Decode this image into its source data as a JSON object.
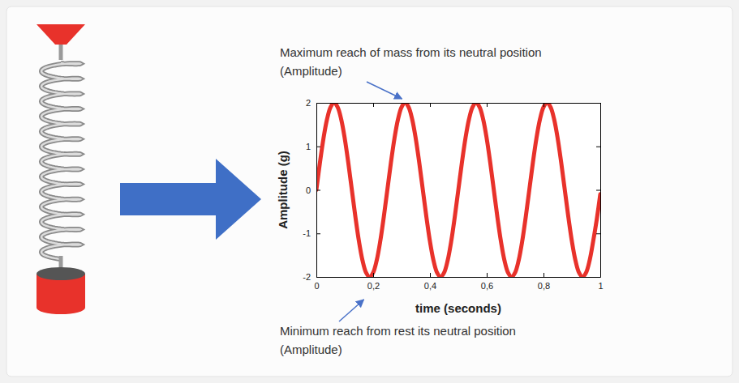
{
  "chart_data": {
    "type": "line",
    "x_label": "time (seconds)",
    "y_label": "Amplitude (g)",
    "color": "#e8322b",
    "grid": false,
    "xlim": [
      0,
      1
    ],
    "xticks": [
      0,
      {
        "value": 0.2,
        "label": "0,2"
      },
      {
        "value": 0.4,
        "label": "0,4"
      },
      {
        "value": 0.6,
        "label": "0,6"
      },
      {
        "value": 0.8,
        "label": "0,8"
      },
      1
    ],
    "ylim": [
      -2,
      2
    ],
    "yticks": [
      -2,
      -1,
      0,
      1,
      2
    ],
    "x": [
      0,
      0.0125,
      0.025,
      0.0375,
      0.05,
      0.0625,
      0.075,
      0.0875,
      0.1,
      0.1125,
      0.125,
      0.1375,
      0.15,
      0.1625,
      0.175,
      0.1875,
      0.2,
      0.2125,
      0.225,
      0.2375,
      0.25,
      0.2625,
      0.275,
      0.2875,
      0.3,
      0.3125,
      0.325,
      0.3375,
      0.35,
      0.3625,
      0.375,
      0.3875,
      0.4,
      0.4125,
      0.425,
      0.4375,
      0.45,
      0.4625,
      0.475,
      0.4875,
      0.5,
      0.5125,
      0.525,
      0.5375,
      0.55,
      0.5625,
      0.575,
      0.5875,
      0.6,
      0.6125,
      0.625,
      0.6375,
      0.65,
      0.6625,
      0.675,
      0.6875,
      0.7,
      0.7125,
      0.725,
      0.7375,
      0.75,
      0.7625,
      0.775,
      0.7875,
      0.8,
      0.8125,
      0.825,
      0.8375,
      0.85,
      0.8625,
      0.875,
      0.8875,
      0.9,
      0.9125,
      0.925,
      0.9375,
      0.95,
      0.9625,
      0.975,
      0.9875,
      1
    ],
    "values": [
      0,
      0.62,
      1.18,
      1.62,
      1.9,
      2,
      1.9,
      1.62,
      1.18,
      0.62,
      0,
      -0.62,
      -1.18,
      -1.62,
      -1.9,
      -2,
      -1.9,
      -1.62,
      -1.18,
      -0.62,
      0,
      0.62,
      1.18,
      1.62,
      1.9,
      2,
      1.9,
      1.62,
      1.18,
      0.62,
      0,
      -0.62,
      -1.18,
      -1.62,
      -1.9,
      -2,
      -1.9,
      -1.62,
      -1.18,
      -0.62,
      0,
      0.62,
      1.18,
      1.62,
      1.9,
      2,
      1.9,
      1.62,
      1.18,
      0.62,
      0,
      -0.62,
      -1.18,
      -1.62,
      -1.9,
      -2,
      -1.9,
      -1.62,
      -1.18,
      -0.62,
      0,
      0.62,
      1.18,
      1.62,
      1.9,
      2,
      1.9,
      1.62,
      1.18,
      0.62,
      0,
      -0.62,
      -1.18,
      -1.62,
      -1.9,
      -2,
      -1.9,
      -1.62,
      -1.18,
      -0.68,
      -0.1
    ],
    "annotations": [
      {
        "lines": [
          "Maximum reach of mass from its neutral position",
          "(Amplitude)"
        ],
        "x": 0.31,
        "y": 2
      },
      {
        "lines": [
          "Minimum reach from rest its neutral position",
          "(Amplitude)"
        ],
        "x": 0.19,
        "y": -2
      }
    ]
  }
}
